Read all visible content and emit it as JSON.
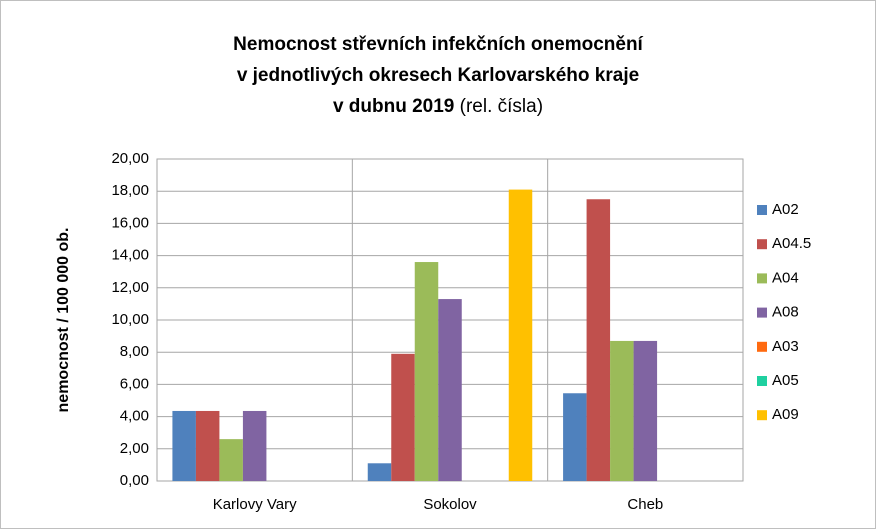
{
  "chart_data": {
    "type": "bar",
    "title": [
      "Nemocnost střevních infekčních onemocnění",
      "v jednotlivých okresech Karlovarského kraje",
      "v dubnu 2019"
    ],
    "subtitle": "(rel. čísla)",
    "y_label": "nemocnost / 100 000 ob.",
    "categories": [
      "Karlovy Vary",
      "Sokolov",
      "Cheb"
    ],
    "series": [
      {
        "name": "A02",
        "color": "#4f81bd",
        "values": [
          4.35,
          1.1,
          5.45
        ]
      },
      {
        "name": "A04.5",
        "color": "#c0504d",
        "values": [
          4.35,
          7.9,
          17.5
        ]
      },
      {
        "name": "A04",
        "color": "#9bbb59",
        "values": [
          2.6,
          13.6,
          8.7
        ]
      },
      {
        "name": "A08",
        "color": "#8064a2",
        "values": [
          4.35,
          11.3,
          8.7
        ]
      },
      {
        "name": "A03",
        "color": "#ff6a10",
        "values": [
          0,
          0,
          0
        ]
      },
      {
        "name": "A05",
        "color": "#1fd0a0",
        "values": [
          0,
          0,
          0
        ]
      },
      {
        "name": "A09",
        "color": "#ffc000",
        "values": [
          0,
          18.1,
          0
        ]
      }
    ],
    "ylim": [
      0,
      20
    ],
    "yticks": [
      {
        "value": 0,
        "label": "0,00"
      },
      {
        "value": 2,
        "label": "2,00"
      },
      {
        "value": 4,
        "label": "4,00"
      },
      {
        "value": 6,
        "label": "6,00"
      },
      {
        "value": 8,
        "label": "8,00"
      },
      {
        "value": 10,
        "label": "10,00"
      },
      {
        "value": 12,
        "label": "12,00"
      },
      {
        "value": 14,
        "label": "14,00"
      },
      {
        "value": 16,
        "label": "16,00"
      },
      {
        "value": 18,
        "label": "18,00"
      },
      {
        "value": 20,
        "label": "20,00"
      }
    ],
    "grid": true,
    "legend": "right"
  }
}
